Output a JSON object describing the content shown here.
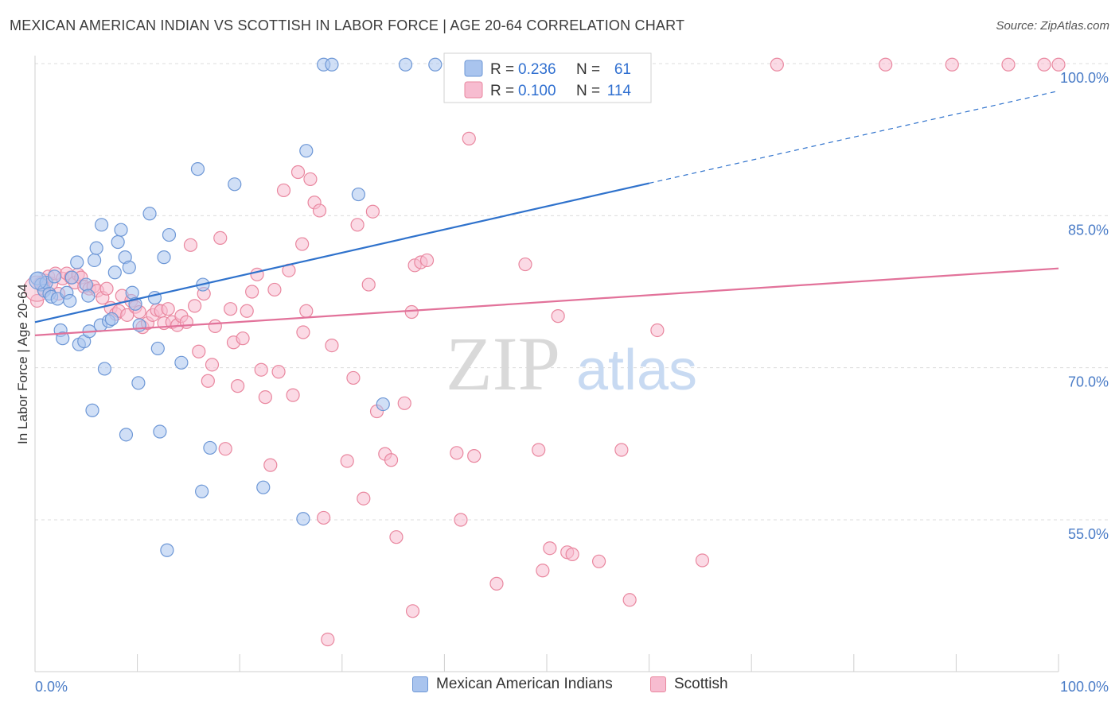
{
  "title": "MEXICAN AMERICAN INDIAN VS SCOTTISH IN LABOR FORCE | AGE 20-64 CORRELATION CHART",
  "source": "Source: ZipAtlas.com",
  "watermark": {
    "zip": "ZIP",
    "atlas": "atlas"
  },
  "colors": {
    "blue_fill": "#a9c4ee",
    "blue_stroke": "#6d97d6",
    "blue_line": "#2f72cc",
    "pink_fill": "#f7bcd0",
    "pink_stroke": "#e9879f",
    "pink_line": "#e2729a",
    "axis_label": "#4a7cc7",
    "grid": "#dcdcdc"
  },
  "chart_data": {
    "type": "scatter",
    "ylabel": "In Labor Force | Age 20-64",
    "xlim": [
      0,
      100
    ],
    "ylim": [
      39.5,
      102
    ],
    "x_tick_labels": [
      "0.0%",
      "100.0%"
    ],
    "y_ticks": [
      55,
      70,
      85,
      100
    ],
    "y_tick_labels": [
      "55.0%",
      "70.0%",
      "85.0%",
      "100.0%"
    ],
    "legend": {
      "r_label": "R =",
      "n_label": "N =",
      "entries": [
        {
          "r": "0.236",
          "n": "61"
        },
        {
          "r": "0.100",
          "n": "114"
        }
      ]
    },
    "series": [
      {
        "name": "Mexican American Indians",
        "color": "blue",
        "trend": {
          "x0": 0,
          "y0": 74.5,
          "x1": 60,
          "y1": 88.2,
          "dash_x1": 100,
          "dash_y1": 97.3
        },
        "points": [
          [
            0.2,
            78.8
          ],
          [
            0.6,
            78.2
          ],
          [
            0.9,
            77.6
          ],
          [
            1.1,
            78.4
          ],
          [
            1.4,
            77.3
          ],
          [
            1.6,
            77.0
          ],
          [
            1.9,
            79.0
          ],
          [
            2.2,
            76.8
          ],
          [
            2.5,
            73.7
          ],
          [
            2.7,
            72.9
          ],
          [
            3.1,
            77.4
          ],
          [
            3.4,
            76.6
          ],
          [
            3.6,
            78.9
          ],
          [
            4.1,
            80.4
          ],
          [
            4.3,
            72.3
          ],
          [
            4.8,
            72.6
          ],
          [
            5.0,
            78.2
          ],
          [
            5.2,
            77.1
          ],
          [
            5.3,
            73.6
          ],
          [
            5.6,
            65.8
          ],
          [
            5.8,
            80.6
          ],
          [
            6.0,
            81.8
          ],
          [
            6.4,
            74.2
          ],
          [
            6.5,
            84.1
          ],
          [
            6.8,
            69.9
          ],
          [
            7.2,
            74.6
          ],
          [
            7.5,
            74.8
          ],
          [
            7.8,
            79.4
          ],
          [
            8.1,
            82.4
          ],
          [
            8.4,
            83.6
          ],
          [
            8.8,
            80.9
          ],
          [
            8.9,
            63.4
          ],
          [
            9.2,
            79.9
          ],
          [
            9.5,
            77.4
          ],
          [
            9.8,
            76.3
          ],
          [
            10.1,
            68.5
          ],
          [
            10.2,
            74.2
          ],
          [
            11.2,
            85.2
          ],
          [
            11.7,
            76.9
          ],
          [
            12.0,
            71.9
          ],
          [
            12.2,
            63.7
          ],
          [
            12.6,
            80.9
          ],
          [
            12.9,
            52.0
          ],
          [
            13.1,
            83.1
          ],
          [
            14.3,
            70.5
          ],
          [
            15.9,
            89.6
          ],
          [
            16.3,
            57.8
          ],
          [
            16.4,
            78.2
          ],
          [
            17.1,
            62.1
          ],
          [
            19.5,
            88.1
          ],
          [
            22.3,
            58.2
          ],
          [
            26.2,
            55.1
          ],
          [
            26.5,
            91.4
          ],
          [
            28.2,
            99.9
          ],
          [
            29.0,
            99.9
          ],
          [
            31.6,
            87.1
          ],
          [
            34.0,
            66.4
          ],
          [
            36.2,
            99.9
          ],
          [
            39.1,
            99.9
          ],
          [
            50.5,
            99.9
          ],
          [
            59.2,
            99.9
          ]
        ]
      },
      {
        "name": "Scottish",
        "color": "pink",
        "trend": {
          "x0": 0,
          "y0": 73.2,
          "x1": 100,
          "y1": 79.8
        },
        "points": [
          [
            0.2,
            76.6
          ],
          [
            0.5,
            78.3
          ],
          [
            0.8,
            77.8
          ],
          [
            1.0,
            78.6
          ],
          [
            1.3,
            79.0
          ],
          [
            1.6,
            78.3
          ],
          [
            2.0,
            79.3
          ],
          [
            2.3,
            77.3
          ],
          [
            2.7,
            78.8
          ],
          [
            3.1,
            79.3
          ],
          [
            3.5,
            78.9
          ],
          [
            3.9,
            78.4
          ],
          [
            4.2,
            79.2
          ],
          [
            4.5,
            78.9
          ],
          [
            4.8,
            78.0
          ],
          [
            5.3,
            77.8
          ],
          [
            5.7,
            78.0
          ],
          [
            6.1,
            77.6
          ],
          [
            6.6,
            76.9
          ],
          [
            7.0,
            77.8
          ],
          [
            7.4,
            75.9
          ],
          [
            7.9,
            75.3
          ],
          [
            8.2,
            75.6
          ],
          [
            8.5,
            77.1
          ],
          [
            9.0,
            75.2
          ],
          [
            9.4,
            76.6
          ],
          [
            9.8,
            76.0
          ],
          [
            10.2,
            75.5
          ],
          [
            10.5,
            74.0
          ],
          [
            11.0,
            74.4
          ],
          [
            11.5,
            75.2
          ],
          [
            11.9,
            75.7
          ],
          [
            12.3,
            75.6
          ],
          [
            12.6,
            74.4
          ],
          [
            13.0,
            75.8
          ],
          [
            13.4,
            74.5
          ],
          [
            13.9,
            74.2
          ],
          [
            14.3,
            75.1
          ],
          [
            14.8,
            74.5
          ],
          [
            15.2,
            82.1
          ],
          [
            15.6,
            76.1
          ],
          [
            16.0,
            71.6
          ],
          [
            16.5,
            77.3
          ],
          [
            16.9,
            68.7
          ],
          [
            17.3,
            70.3
          ],
          [
            17.6,
            74.1
          ],
          [
            18.1,
            82.8
          ],
          [
            18.6,
            62.0
          ],
          [
            19.1,
            75.8
          ],
          [
            19.4,
            72.5
          ],
          [
            19.8,
            68.2
          ],
          [
            20.3,
            72.9
          ],
          [
            20.7,
            75.6
          ],
          [
            21.2,
            77.5
          ],
          [
            21.7,
            79.2
          ],
          [
            22.1,
            69.8
          ],
          [
            22.5,
            67.1
          ],
          [
            23.0,
            60.4
          ],
          [
            23.4,
            77.7
          ],
          [
            23.8,
            69.6
          ],
          [
            24.3,
            87.5
          ],
          [
            24.8,
            79.6
          ],
          [
            25.2,
            67.3
          ],
          [
            25.7,
            89.3
          ],
          [
            26.1,
            82.2
          ],
          [
            26.5,
            75.6
          ],
          [
            26.9,
            88.6
          ],
          [
            27.3,
            86.3
          ],
          [
            27.8,
            85.5
          ],
          [
            28.2,
            55.2
          ],
          [
            28.6,
            43.2
          ],
          [
            29.0,
            72.2
          ],
          [
            30.5,
            60.8
          ],
          [
            31.1,
            69.0
          ],
          [
            31.5,
            84.1
          ],
          [
            32.1,
            57.1
          ],
          [
            32.6,
            78.2
          ],
          [
            33.0,
            85.4
          ],
          [
            33.4,
            65.7
          ],
          [
            34.2,
            61.5
          ],
          [
            34.8,
            60.9
          ],
          [
            35.3,
            53.3
          ],
          [
            36.1,
            66.5
          ],
          [
            36.9,
            46.0
          ],
          [
            37.1,
            80.1
          ],
          [
            37.7,
            80.4
          ],
          [
            38.3,
            80.6
          ],
          [
            41.2,
            61.6
          ],
          [
            41.6,
            55.0
          ],
          [
            42.4,
            92.6
          ],
          [
            42.9,
            61.3
          ],
          [
            45.1,
            48.7
          ],
          [
            47.9,
            80.2
          ],
          [
            49.2,
            61.9
          ],
          [
            49.6,
            50.0
          ],
          [
            50.3,
            52.2
          ],
          [
            51.1,
            75.1
          ],
          [
            52.0,
            51.8
          ],
          [
            52.5,
            51.6
          ],
          [
            55.1,
            50.9
          ],
          [
            57.3,
            61.9
          ],
          [
            58.1,
            47.1
          ],
          [
            60.8,
            73.7
          ],
          [
            65.2,
            51.0
          ],
          [
            72.5,
            99.9
          ],
          [
            83.1,
            99.9
          ],
          [
            89.6,
            99.9
          ],
          [
            95.1,
            99.9
          ],
          [
            98.6,
            99.9
          ],
          [
            100.0,
            99.9
          ],
          [
            36.8,
            75.5
          ],
          [
            26.2,
            73.5
          ]
        ]
      }
    ]
  }
}
